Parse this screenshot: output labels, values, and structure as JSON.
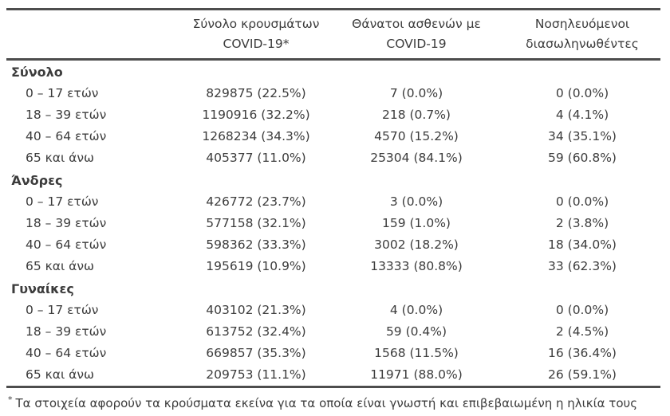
{
  "colors": {
    "text": "#3c3c3c",
    "rule": "#4d4d4d",
    "background": "#ffffff"
  },
  "table": {
    "columns": [
      {
        "key": "cases",
        "line1": "Σύνολο κρουσμάτων",
        "line2": "COVID-19*"
      },
      {
        "key": "deaths",
        "line1": "Θάνατοι ασθενών με",
        "line2": "COVID-19"
      },
      {
        "key": "intubated",
        "line1": "Νοσηλευόμενοι",
        "line2": "διασωληνωθέντες"
      }
    ],
    "groups": [
      {
        "label": "Σύνολο",
        "rows": [
          {
            "label": "0 – 17 ετών",
            "cases": "829875 (22.5%)",
            "deaths": "7 (0.0%)",
            "intubated": "0 (0.0%)"
          },
          {
            "label": "18 – 39 ετών",
            "cases": "1190916 (32.2%)",
            "deaths": "218 (0.7%)",
            "intubated": "4 (4.1%)"
          },
          {
            "label": "40 – 64 ετών",
            "cases": "1268234 (34.3%)",
            "deaths": "4570 (15.2%)",
            "intubated": "34 (35.1%)"
          },
          {
            "label": "65 και άνω",
            "cases": "405377 (11.0%)",
            "deaths": "25304 (84.1%)",
            "intubated": "59 (60.8%)"
          }
        ]
      },
      {
        "label": "Άνδρες",
        "rows": [
          {
            "label": "0 – 17 ετών",
            "cases": "426772 (23.7%)",
            "deaths": "3 (0.0%)",
            "intubated": "0 (0.0%)"
          },
          {
            "label": "18 – 39 ετών",
            "cases": "577158 (32.1%)",
            "deaths": "159 (1.0%)",
            "intubated": "2 (3.8%)"
          },
          {
            "label": "40 – 64 ετών",
            "cases": "598362 (33.3%)",
            "deaths": "3002 (18.2%)",
            "intubated": "18 (34.0%)"
          },
          {
            "label": "65 και άνω",
            "cases": "195619 (10.9%)",
            "deaths": "13333 (80.8%)",
            "intubated": "33 (62.3%)"
          }
        ]
      },
      {
        "label": "Γυναίκες",
        "rows": [
          {
            "label": "0 – 17 ετών",
            "cases": "403102 (21.3%)",
            "deaths": "4 (0.0%)",
            "intubated": "0 (0.0%)"
          },
          {
            "label": "18 – 39 ετών",
            "cases": "613752 (32.4%)",
            "deaths": "59 (0.4%)",
            "intubated": "2 (4.5%)"
          },
          {
            "label": "40 – 64 ετών",
            "cases": "669857 (35.3%)",
            "deaths": "1568 (11.5%)",
            "intubated": "16 (36.4%)"
          },
          {
            "label": "65 και άνω",
            "cases": "209753 (11.1%)",
            "deaths": "11971 (88.0%)",
            "intubated": "26 (59.1%)"
          }
        ]
      }
    ],
    "footnote": {
      "marker": "*",
      "text": "Τα στοιχεία αφορούν τα κρούσματα εκείνα για τα οποία είναι γνωστή και επιβεβαιωμένη η ηλικία τους"
    }
  }
}
